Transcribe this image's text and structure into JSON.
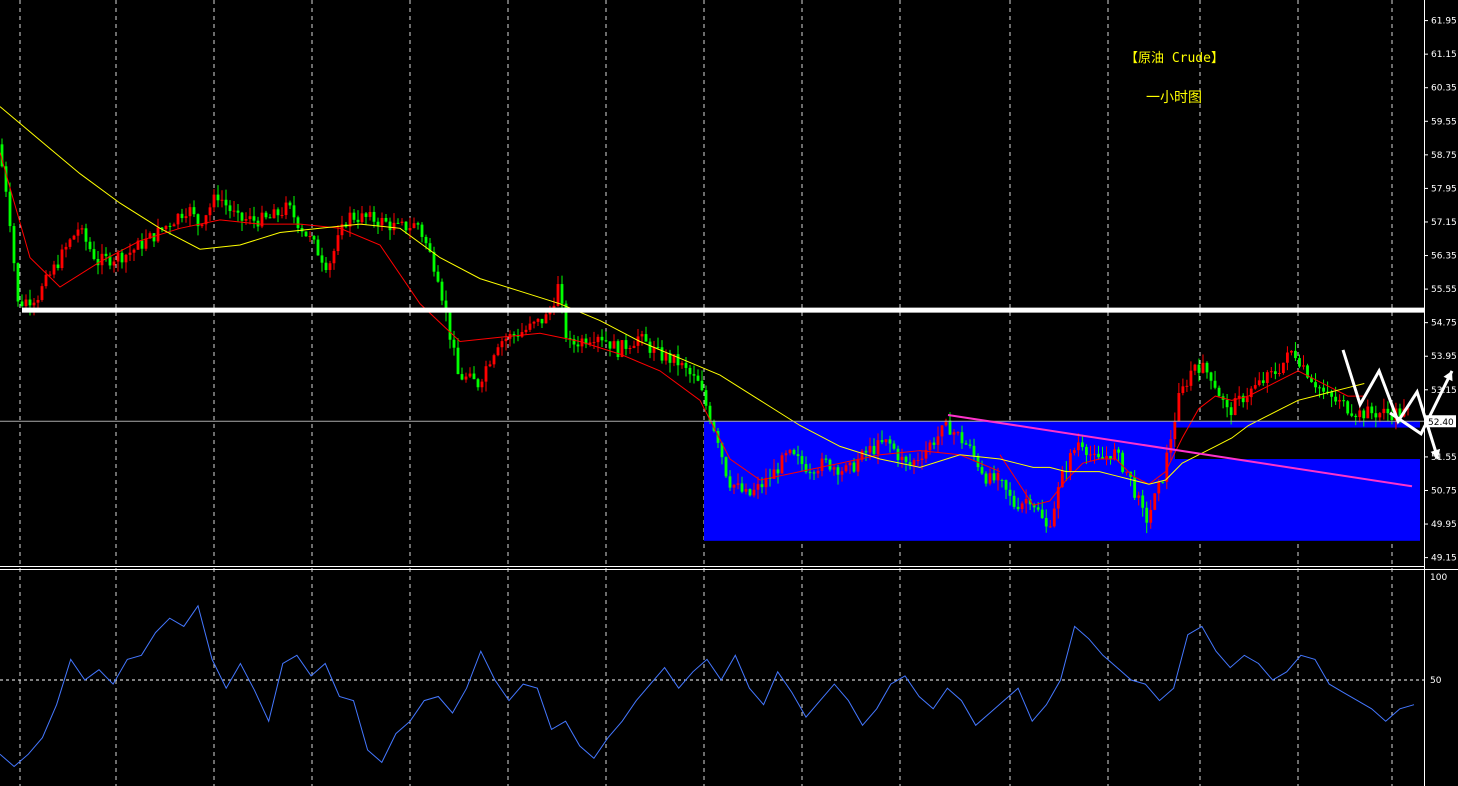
{
  "chart_data": {
    "type": "candlestick",
    "title": "【原油 Crude】",
    "subtitle": "一小时图",
    "price_axis": {
      "ylim": [
        48.95,
        62.25
      ],
      "ticks": [
        "61.95",
        "61.15",
        "60.35",
        "59.55",
        "58.75",
        "57.95",
        "57.15",
        "56.35",
        "55.55",
        "54.75",
        "53.95",
        "53.15",
        "52.35",
        "51.55",
        "50.75",
        "49.95",
        "49.15"
      ],
      "current_price": "52.40"
    },
    "indicator_axis": {
      "ylim": [
        0,
        100
      ],
      "ticks": [
        "100",
        "50"
      ],
      "reference_level": 50
    },
    "colors": {
      "up": "#ff0000",
      "down": "#00ff00",
      "ma_fast": "#ff0000",
      "ma_slow": "#ffff00",
      "zone": "#0000ff",
      "trendline": "#ff33cc",
      "resistance": "#ffffff",
      "indicator": "#4477ff",
      "grid": "#ffffff"
    },
    "grid": true,
    "resistance_level": 55.05,
    "zone": {
      "top": 52.4,
      "bottom": 49.55
    },
    "trendline": {
      "start": [
        0,
        52.55
      ],
      "end": [
        1,
        50.85
      ]
    },
    "close_path": [
      [
        0,
        59.0
      ],
      [
        0.01,
        57.7
      ],
      [
        0.02,
        55.2
      ],
      [
        0.04,
        55.4
      ],
      [
        0.06,
        56.2
      ],
      [
        0.08,
        57.0
      ],
      [
        0.1,
        56.2
      ],
      [
        0.13,
        56.4
      ],
      [
        0.16,
        56.9
      ],
      [
        0.19,
        57.5
      ],
      [
        0.2,
        57.1
      ],
      [
        0.22,
        57.8
      ],
      [
        0.24,
        57.2
      ],
      [
        0.27,
        57.2
      ],
      [
        0.29,
        57.5
      ],
      [
        0.31,
        56.8
      ],
      [
        0.33,
        56.1
      ],
      [
        0.35,
        57.3
      ],
      [
        0.38,
        57.2
      ],
      [
        0.4,
        57.0
      ],
      [
        0.42,
        57.1
      ],
      [
        0.44,
        55.9
      ],
      [
        0.46,
        53.5
      ],
      [
        0.48,
        53.3
      ],
      [
        0.5,
        54.3
      ],
      [
        0.53,
        54.6
      ],
      [
        0.55,
        54.9
      ],
      [
        0.56,
        55.6
      ],
      [
        0.57,
        54.2
      ],
      [
        0.6,
        54.5
      ],
      [
        0.62,
        54.1
      ],
      [
        0.64,
        54.4
      ],
      [
        0.66,
        54.0
      ],
      [
        0.68,
        53.8
      ],
      [
        0.7,
        53.3
      ],
      [
        0.72,
        52.0
      ],
      [
        0.73,
        51.0
      ],
      [
        0.75,
        50.6
      ],
      [
        0.77,
        51.0
      ],
      [
        0.79,
        51.6
      ],
      [
        0.81,
        51.3
      ],
      [
        0.83,
        51.4
      ],
      [
        0.85,
        51.2
      ],
      [
        0.87,
        51.7
      ],
      [
        0.89,
        51.9
      ],
      [
        0.91,
        51.3
      ],
      [
        0.93,
        51.8
      ],
      [
        0.95,
        52.3
      ],
      [
        0.97,
        51.8
      ],
      [
        0.99,
        51.0
      ]
    ],
    "close_path_b": [
      [
        0,
        51.0
      ],
      [
        0.04,
        50.4
      ],
      [
        0.08,
        50.6
      ],
      [
        0.12,
        49.8
      ],
      [
        0.16,
        51.2
      ],
      [
        0.2,
        52.0
      ],
      [
        0.24,
        51.4
      ],
      [
        0.28,
        51.7
      ],
      [
        0.32,
        51.1
      ],
      [
        0.36,
        50.0
      ],
      [
        0.4,
        51.0
      ],
      [
        0.44,
        52.9
      ],
      [
        0.48,
        53.8
      ],
      [
        0.52,
        53.5
      ],
      [
        0.56,
        52.6
      ],
      [
        0.6,
        53.0
      ],
      [
        0.64,
        53.3
      ],
      [
        0.68,
        53.6
      ],
      [
        0.72,
        54.1
      ],
      [
        0.76,
        53.5
      ],
      [
        0.8,
        53.0
      ],
      [
        0.84,
        52.8
      ],
      [
        0.88,
        52.6
      ]
    ],
    "ma_fast": [
      [
        0,
        58.8
      ],
      [
        0.03,
        56.3
      ],
      [
        0.06,
        55.6
      ],
      [
        0.1,
        56.2
      ],
      [
        0.14,
        56.7
      ],
      [
        0.18,
        57.0
      ],
      [
        0.22,
        57.2
      ],
      [
        0.26,
        57.1
      ],
      [
        0.3,
        57.1
      ],
      [
        0.34,
        57.0
      ],
      [
        0.38,
        56.6
      ],
      [
        0.42,
        55.2
      ],
      [
        0.46,
        54.3
      ],
      [
        0.5,
        54.4
      ],
      [
        0.54,
        54.5
      ],
      [
        0.58,
        54.3
      ],
      [
        0.62,
        54.0
      ],
      [
        0.66,
        53.6
      ],
      [
        0.7,
        52.9
      ],
      [
        0.73,
        51.5
      ],
      [
        0.76,
        51.0
      ],
      [
        0.8,
        51.2
      ],
      [
        0.84,
        51.4
      ],
      [
        0.88,
        51.6
      ],
      [
        0.92,
        51.7
      ],
      [
        0.96,
        51.6
      ],
      [
        1.0,
        51.2
      ]
    ],
    "ma_fast_b": [
      [
        0,
        51.6
      ],
      [
        0.04,
        51.0
      ],
      [
        0.08,
        50.4
      ],
      [
        0.12,
        50.5
      ],
      [
        0.16,
        51.0
      ],
      [
        0.2,
        51.4
      ],
      [
        0.24,
        51.5
      ],
      [
        0.28,
        51.5
      ],
      [
        0.32,
        51.1
      ],
      [
        0.36,
        50.9
      ],
      [
        0.4,
        51.2
      ],
      [
        0.44,
        52.0
      ],
      [
        0.48,
        52.7
      ],
      [
        0.52,
        53.0
      ],
      [
        0.56,
        52.9
      ],
      [
        0.6,
        53.0
      ],
      [
        0.64,
        53.2
      ],
      [
        0.68,
        53.4
      ],
      [
        0.72,
        53.6
      ],
      [
        0.76,
        53.4
      ],
      [
        0.8,
        53.2
      ],
      [
        0.84,
        53.0
      ],
      [
        0.88,
        53.0
      ]
    ],
    "ma_slow": [
      [
        0,
        59.9
      ],
      [
        0.04,
        59.1
      ],
      [
        0.08,
        58.3
      ],
      [
        0.12,
        57.6
      ],
      [
        0.16,
        57.0
      ],
      [
        0.2,
        56.5
      ],
      [
        0.24,
        56.6
      ],
      [
        0.28,
        56.9
      ],
      [
        0.32,
        57.0
      ],
      [
        0.36,
        57.1
      ],
      [
        0.4,
        57.0
      ],
      [
        0.44,
        56.3
      ],
      [
        0.48,
        55.8
      ],
      [
        0.52,
        55.5
      ],
      [
        0.56,
        55.2
      ],
      [
        0.6,
        54.8
      ],
      [
        0.64,
        54.3
      ],
      [
        0.68,
        53.9
      ],
      [
        0.72,
        53.5
      ],
      [
        0.76,
        52.9
      ],
      [
        0.8,
        52.3
      ],
      [
        0.84,
        51.8
      ],
      [
        0.88,
        51.5
      ],
      [
        0.92,
        51.3
      ],
      [
        0.96,
        51.6
      ],
      [
        1.0,
        51.5
      ]
    ],
    "ma_slow_b": [
      [
        0,
        51.5
      ],
      [
        0.04,
        51.4
      ],
      [
        0.08,
        51.3
      ],
      [
        0.12,
        51.3
      ],
      [
        0.16,
        51.2
      ],
      [
        0.2,
        51.2
      ],
      [
        0.24,
        51.2
      ],
      [
        0.28,
        51.1
      ],
      [
        0.32,
        51.0
      ],
      [
        0.36,
        50.9
      ],
      [
        0.4,
        51.0
      ],
      [
        0.44,
        51.4
      ],
      [
        0.48,
        51.6
      ],
      [
        0.52,
        51.8
      ],
      [
        0.56,
        52.0
      ],
      [
        0.6,
        52.3
      ],
      [
        0.64,
        52.5
      ],
      [
        0.68,
        52.7
      ],
      [
        0.72,
        52.9
      ],
      [
        0.76,
        53.0
      ],
      [
        0.8,
        53.1
      ],
      [
        0.84,
        53.2
      ],
      [
        0.88,
        53.3
      ]
    ],
    "projection_1": [
      [
        0,
        54.1
      ],
      [
        0.18,
        52.8
      ],
      [
        0.38,
        53.6
      ],
      [
        0.58,
        52.4
      ],
      [
        0.78,
        53.1
      ],
      [
        1.0,
        51.5
      ]
    ],
    "projection_2": [
      [
        0,
        52.6
      ],
      [
        0.5,
        52.1
      ],
      [
        1.0,
        53.6
      ]
    ],
    "indicator": [
      [
        0,
        14
      ],
      [
        0.01,
        8
      ],
      [
        0.02,
        14
      ],
      [
        0.03,
        22
      ],
      [
        0.04,
        38
      ],
      [
        0.05,
        60
      ],
      [
        0.06,
        50
      ],
      [
        0.07,
        55
      ],
      [
        0.08,
        48
      ],
      [
        0.09,
        60
      ],
      [
        0.1,
        62
      ],
      [
        0.11,
        73
      ],
      [
        0.12,
        80
      ],
      [
        0.13,
        76
      ],
      [
        0.14,
        86
      ],
      [
        0.15,
        60
      ],
      [
        0.16,
        46
      ],
      [
        0.17,
        58
      ],
      [
        0.18,
        45
      ],
      [
        0.19,
        30
      ],
      [
        0.2,
        58
      ],
      [
        0.21,
        62
      ],
      [
        0.22,
        52
      ],
      [
        0.23,
        58
      ],
      [
        0.24,
        42
      ],
      [
        0.25,
        40
      ],
      [
        0.26,
        16
      ],
      [
        0.27,
        10
      ],
      [
        0.28,
        24
      ],
      [
        0.29,
        30
      ],
      [
        0.3,
        40
      ],
      [
        0.31,
        42
      ],
      [
        0.32,
        34
      ],
      [
        0.33,
        46
      ],
      [
        0.34,
        64
      ],
      [
        0.35,
        50
      ],
      [
        0.36,
        40
      ],
      [
        0.37,
        48
      ],
      [
        0.38,
        46
      ],
      [
        0.39,
        26
      ],
      [
        0.4,
        30
      ],
      [
        0.41,
        18
      ],
      [
        0.42,
        12
      ],
      [
        0.43,
        22
      ],
      [
        0.44,
        30
      ],
      [
        0.45,
        40
      ],
      [
        0.46,
        48
      ],
      [
        0.47,
        56
      ],
      [
        0.48,
        46
      ],
      [
        0.49,
        54
      ],
      [
        0.5,
        60
      ],
      [
        0.51,
        50
      ],
      [
        0.52,
        62
      ],
      [
        0.53,
        46
      ],
      [
        0.54,
        38
      ],
      [
        0.55,
        54
      ],
      [
        0.56,
        44
      ],
      [
        0.57,
        32
      ],
      [
        0.58,
        40
      ],
      [
        0.59,
        48
      ],
      [
        0.6,
        40
      ],
      [
        0.61,
        28
      ],
      [
        0.62,
        36
      ],
      [
        0.63,
        48
      ],
      [
        0.64,
        52
      ],
      [
        0.65,
        42
      ],
      [
        0.66,
        36
      ],
      [
        0.67,
        46
      ],
      [
        0.68,
        40
      ],
      [
        0.69,
        28
      ],
      [
        0.7,
        34
      ],
      [
        0.71,
        40
      ],
      [
        0.72,
        46
      ],
      [
        0.73,
        30
      ],
      [
        0.74,
        38
      ],
      [
        0.75,
        50
      ],
      [
        0.76,
        76
      ],
      [
        0.77,
        70
      ],
      [
        0.78,
        62
      ],
      [
        0.79,
        56
      ],
      [
        0.8,
        50
      ],
      [
        0.81,
        48
      ],
      [
        0.82,
        40
      ],
      [
        0.83,
        46
      ],
      [
        0.84,
        72
      ],
      [
        0.85,
        76
      ],
      [
        0.86,
        64
      ],
      [
        0.87,
        56
      ],
      [
        0.88,
        62
      ],
      [
        0.89,
        58
      ],
      [
        0.9,
        50
      ],
      [
        0.91,
        54
      ],
      [
        0.92,
        62
      ],
      [
        0.93,
        60
      ],
      [
        0.94,
        48
      ],
      [
        0.95,
        44
      ],
      [
        0.96,
        40
      ],
      [
        0.97,
        36
      ],
      [
        0.98,
        30
      ],
      [
        0.99,
        36
      ],
      [
        1.0,
        38
      ]
    ]
  }
}
